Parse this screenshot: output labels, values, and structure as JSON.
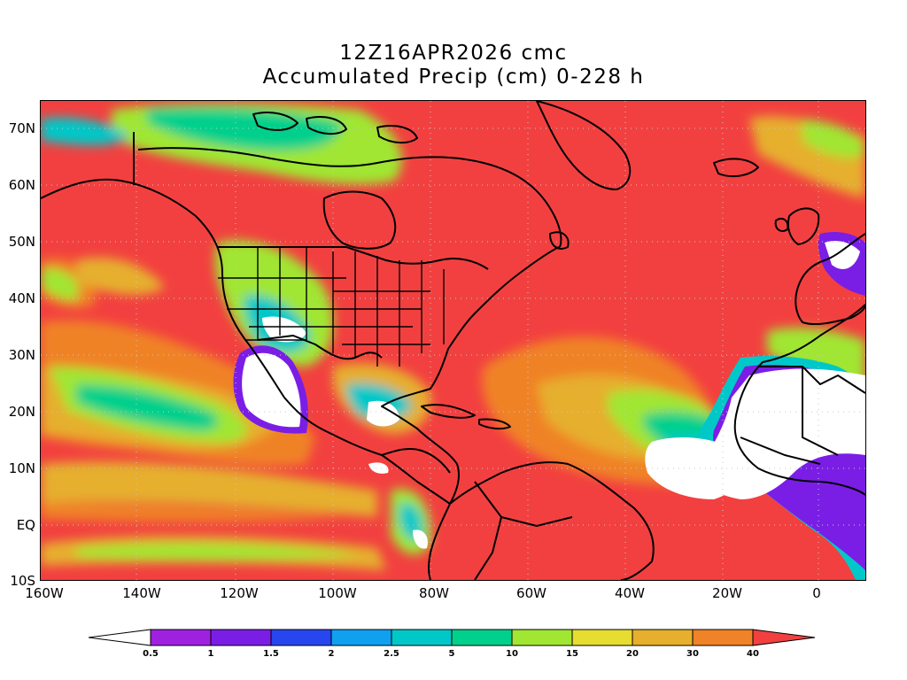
{
  "title": {
    "line1": "12Z16APR2026 cmc",
    "line2": "Accumulated Precip (cm) 0-228 h"
  },
  "axes": {
    "y_labels": [
      "70N",
      "60N",
      "50N",
      "40N",
      "30N",
      "20N",
      "10N",
      "EQ",
      "10S"
    ],
    "x_labels": [
      "160W",
      "140W",
      "120W",
      "100W",
      "80W",
      "60W",
      "40W",
      "20W",
      "0"
    ]
  },
  "colorbar": {
    "levels": [
      "0.5",
      "1",
      "1.5",
      "2",
      "2.5",
      "5",
      "10",
      "15",
      "20",
      "30",
      "40"
    ],
    "colors": [
      "#ffffff",
      "#a020e0",
      "#7a1ee6",
      "#2846f0",
      "#10a0f0",
      "#00c8c8",
      "#00d08c",
      "#a0e632",
      "#e6dc32",
      "#e6af2d",
      "#f08228",
      "#f24040"
    ]
  }
}
